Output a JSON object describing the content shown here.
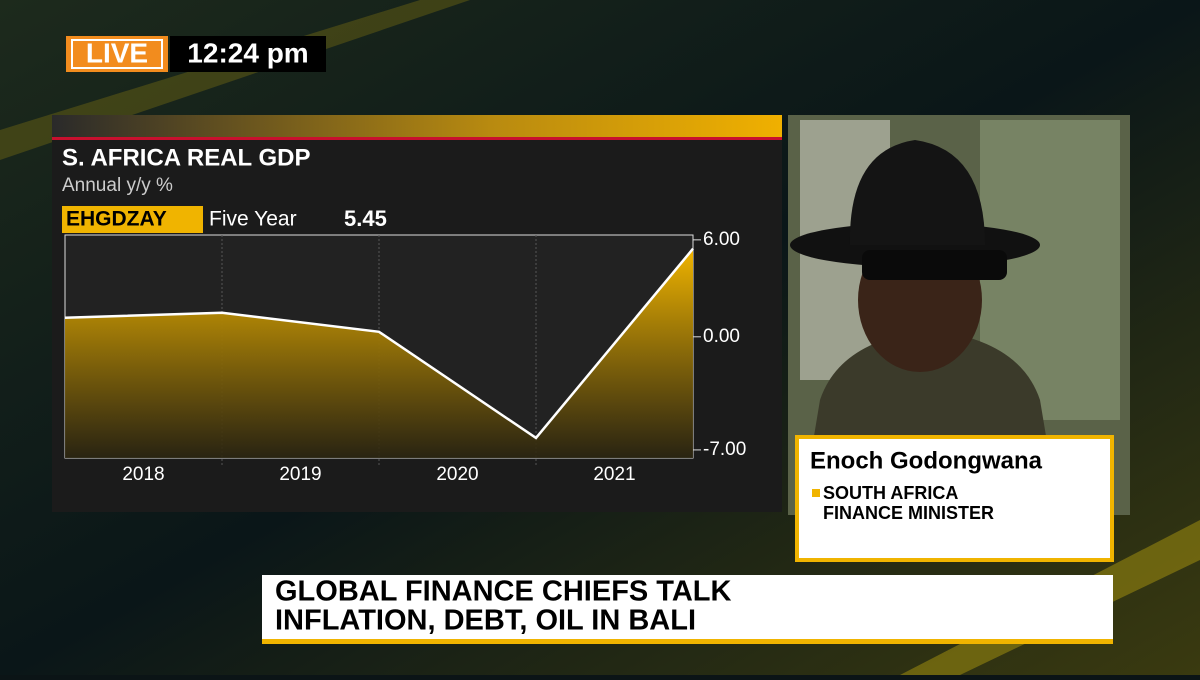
{
  "live_badge": "LIVE",
  "clock": "12:24 pm",
  "chart_data": {
    "type": "area",
    "title": "S. AFRICA REAL GDP",
    "subtitle": "Annual y/y %",
    "ticker": "EHGDZAY",
    "period": "Five Year",
    "last_value": 5.45,
    "x": [
      2017.5,
      2018.5,
      2019.5,
      2020.5,
      2021.5
    ],
    "series": [
      {
        "color": "#f0b400",
        "values": [
          1.18,
          1.49,
          0.31,
          -6.26,
          5.45
        ]
      }
    ],
    "xlim": [
      2017.5,
      2021.5
    ],
    "xticks": [
      2018,
      2019,
      2020,
      2021
    ],
    "xgrid": [
      2018.5,
      2019.5,
      2020.5
    ],
    "ylim": [
      -7.5,
      6.3
    ],
    "yticks": [
      {
        "value": 6,
        "label": "6.00"
      },
      {
        "value": 0,
        "label": "0.00"
      },
      {
        "value": -7,
        "label": "-7.00"
      }
    ],
    "grid": true
  },
  "guest": {
    "name": "Enoch Godongwana",
    "role_lines": [
      "SOUTH AFRICA",
      "FINANCE MINISTER"
    ]
  },
  "headline": {
    "lines": [
      "GLOBAL FINANCE CHIEFS TALK",
      "INFLATION, DEBT, OIL IN BALI"
    ]
  }
}
